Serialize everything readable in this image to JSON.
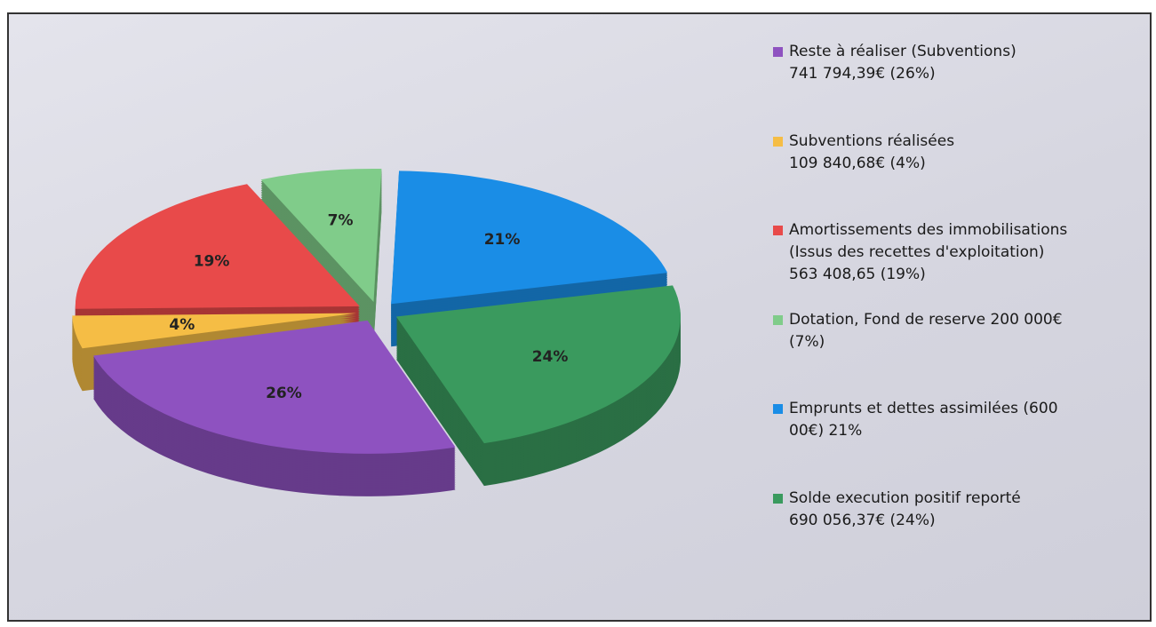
{
  "chart_data": {
    "type": "pie",
    "categories": [
      "Reste à réaliser (Subventions)\n741 794,39€ (26%)",
      "Subventions réalisées\n109 840,68€ (4%)",
      "Amortissements des immobilisations\n(Issus des recettes d'exploitation)\n563 408,65 (19%)",
      "Dotation, Fond de reserve 200 000€\n(7%)",
      "Emprunts et dettes assimilées (600\n00€) 21%",
      "Solde execution positif reporté\n690 056,37€ (24%)"
    ],
    "values": [
      26,
      4,
      19,
      7,
      21,
      24
    ],
    "value_labels": [
      "26%",
      "4%",
      "19%",
      "7%",
      "21%",
      "24%"
    ],
    "colors": [
      "#8e52c0",
      "#f5bd45",
      "#e84a4a",
      "#80cc8a",
      "#1a8de6",
      "#3a9a5e"
    ],
    "legend": "right"
  }
}
